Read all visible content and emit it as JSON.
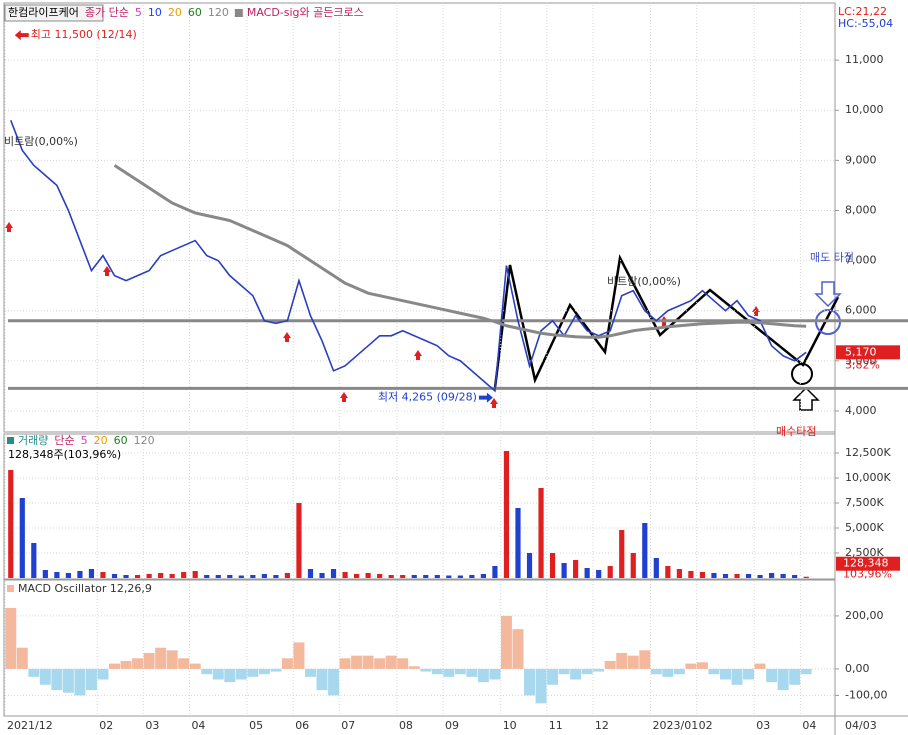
{
  "chart_data": [
    {
      "type": "line",
      "title": "한컴라이프케어",
      "indicator_label": "종가 단순",
      "ma_periods": [
        5,
        10,
        20,
        60,
        120
      ],
      "ma_colors": [
        "#d040c0",
        "#2040ff",
        "#e8a000",
        "#208020",
        "#888888"
      ],
      "signal_label": "MACD-sig와 골든크로스",
      "lc_label": "LC:21,22",
      "hc_label": "HC:-55,04",
      "categories": [
        "2021/12",
        null,
        null,
        null,
        null,
        null,
        null,
        null,
        "02",
        null,
        null,
        null,
        "03",
        null,
        null,
        null,
        "04",
        null,
        null,
        null,
        null,
        "05",
        null,
        null,
        null,
        "06",
        null,
        null,
        null,
        "07",
        null,
        null,
        null,
        null,
        "08",
        null,
        null,
        null,
        "09",
        null,
        null,
        null,
        null,
        "10",
        null,
        null,
        null,
        "11",
        null,
        null,
        null,
        "12",
        null,
        null,
        null,
        null,
        "2023/01",
        null,
        null,
        null,
        "02",
        null,
        null,
        null,
        null,
        "03",
        null,
        null,
        null,
        "04",
        null,
        null
      ],
      "current_date_label": "04/03",
      "series": [
        {
          "name": "종가",
          "color": "#2a3fbf",
          "values": [
            9800,
            9200,
            8900,
            8700,
            8500,
            8000,
            7400,
            6800,
            7100,
            6700,
            6600,
            6700,
            6800,
            7100,
            7200,
            7300,
            7400,
            7100,
            7000,
            6700,
            6500,
            6300,
            5800,
            5750,
            5800,
            6600,
            5900,
            5400,
            4800,
            4900,
            5100,
            5300,
            5500,
            5500,
            5600,
            5500,
            5400,
            5300,
            5100,
            5000,
            4800,
            4600,
            4400,
            6900,
            5800,
            4900,
            5600,
            5800,
            5500,
            5900,
            5600,
            5500,
            5600,
            6300,
            6400,
            6000,
            5800,
            6000,
            6100,
            6200,
            6400,
            6200,
            6000,
            6200,
            5900,
            5800,
            5300,
            5100,
            5000,
            5170,
            null,
            null
          ]
        },
        {
          "name": "120",
          "color": "#888888",
          "values": [
            null,
            null,
            null,
            null,
            null,
            null,
            null,
            null,
            null,
            8900,
            8750,
            8600,
            8450,
            8300,
            8150,
            8050,
            7950,
            7900,
            7850,
            7800,
            7700,
            7600,
            7500,
            7400,
            7300,
            7150,
            7000,
            6850,
            6700,
            6550,
            6450,
            6350,
            6300,
            6250,
            6200,
            6150,
            6100,
            6050,
            6000,
            5950,
            5900,
            5850,
            5780,
            5700,
            5650,
            5600,
            5550,
            5520,
            5500,
            5480,
            5470,
            5470,
            5500,
            5550,
            5600,
            5630,
            5650,
            5680,
            5700,
            5720,
            5740,
            5750,
            5760,
            5770,
            5770,
            5760,
            5740,
            5720,
            5700,
            5690,
            null,
            null
          ]
        }
      ],
      "ylim": [
        3620,
        12100
      ],
      "yticks": [
        {
          "value": 4000,
          "label": "4,000"
        },
        {
          "value": 5000,
          "label": "5,000"
        },
        {
          "value": 6000,
          "label": "6,000"
        },
        {
          "value": 7000,
          "label": "7,000"
        },
        {
          "value": 8000,
          "label": "8,000"
        },
        {
          "value": 9000,
          "label": "9,000"
        },
        {
          "value": 10000,
          "label": "10,000"
        },
        {
          "value": 11000,
          "label": "11,000"
        }
      ],
      "reference_lines": [
        5800,
        4450
      ],
      "high_value": 11500,
      "high_label": "최고 11,500 (12/14)",
      "low_value": 4265,
      "low_label": "최저 4,265 (09/28)",
      "last_price_label": "5,170",
      "change_label": "3,82%",
      "ratio_labels": [
        "비트람(0,00%)",
        "비트람(0,00%)"
      ],
      "sell_point_label": "매도 타점",
      "buy_point_label": "매수타점"
    },
    {
      "type": "bar",
      "title": "거래량",
      "ma_label": "단순",
      "ma_periods": [
        5,
        20,
        60,
        120
      ],
      "ma_colors": [
        "#d040c0",
        "#e8a000",
        "#208020",
        "#888888"
      ],
      "legend_value_label": "128,348주(103,96%)",
      "last_label": "128,348",
      "last_ratio_label": "103,96%",
      "values": [
        10800,
        8000,
        3500,
        800,
        600,
        500,
        700,
        900,
        600,
        400,
        300,
        300,
        400,
        500,
        400,
        600,
        700,
        300,
        300,
        300,
        250,
        300,
        400,
        300,
        500,
        7500,
        900,
        500,
        900,
        600,
        400,
        500,
        400,
        300,
        300,
        300,
        300,
        300,
        250,
        250,
        300,
        400,
        1200,
        12700,
        7000,
        2500,
        9000,
        2500,
        1500,
        1800,
        1000,
        800,
        1200,
        4800,
        2500,
        5500,
        2000,
        1200,
        900,
        700,
        600,
        500,
        400,
        400,
        400,
        300,
        500,
        400,
        300,
        128.348,
        null,
        null
      ],
      "colors": [
        "#e02020",
        "#2040d0"
      ],
      "ylim": [
        0,
        14000
      ],
      "yticks": [
        {
          "value": 2500,
          "label": "2,500K"
        },
        {
          "value": 5000,
          "label": "5,000K"
        },
        {
          "value": 7500,
          "label": "7,500K"
        },
        {
          "value": 10000,
          "label": "10,000K"
        },
        {
          "value": 12500,
          "label": "12,500K"
        }
      ]
    },
    {
      "type": "bar",
      "title": "MACD Oscillator 12,26,9",
      "values": [
        230,
        80,
        -30,
        -60,
        -80,
        -90,
        -100,
        -80,
        -40,
        20,
        30,
        40,
        60,
        80,
        70,
        40,
        20,
        -20,
        -40,
        -50,
        -40,
        -30,
        -20,
        -10,
        40,
        100,
        -30,
        -80,
        -100,
        40,
        50,
        50,
        40,
        50,
        40,
        10,
        -10,
        -20,
        -30,
        -20,
        -30,
        -50,
        -40,
        200,
        150,
        -100,
        -130,
        -60,
        -20,
        -40,
        -20,
        -10,
        30,
        60,
        50,
        70,
        -20,
        -30,
        -20,
        20,
        25,
        -20,
        -40,
        -60,
        -40,
        20,
        -50,
        -80,
        -60,
        -20,
        null,
        null
      ],
      "colors": [
        "#f4b89c",
        "#a8d8ee"
      ],
      "ylim": [
        -174,
        328
      ],
      "yticks": [
        {
          "value": -100,
          "label": "-100,00"
        },
        {
          "value": 0,
          "label": "0,00"
        },
        {
          "value": 200,
          "label": "200,00"
        }
      ]
    }
  ]
}
